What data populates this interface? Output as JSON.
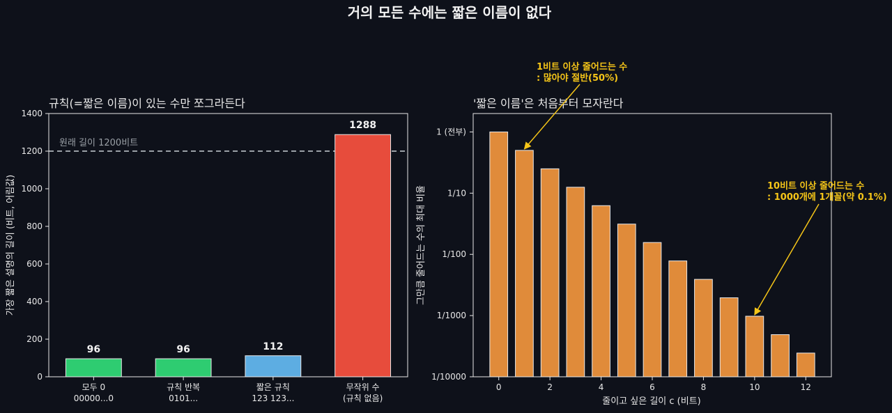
{
  "figure_title": "거의 모든 수에는 짧은 이름이 없다",
  "colors": {
    "background": "#0e111a",
    "axis": "#e8e8e8",
    "text": "#e8e8e8",
    "annotation": "#f5c518",
    "reference_line": "#9aa0a6",
    "green": "#2ecc71",
    "blue": "#5dade2",
    "red": "#e74c3c",
    "orange": "#e08b3a"
  },
  "chart_data": [
    {
      "type": "bar",
      "title": "규칙(=짧은 이름)이 있는 수만 쪼그라든다",
      "xlabel": "",
      "ylabel": "가장 짧은 설명의 길이 (비트, 어림값)",
      "ylim": [
        0,
        1400
      ],
      "yticks": [
        0,
        200,
        400,
        600,
        800,
        1000,
        1200,
        1400
      ],
      "categories": [
        {
          "line1": "모두 0",
          "line2": "00000...0"
        },
        {
          "line1": "규칙 반복",
          "line2": "0101..."
        },
        {
          "line1": "짧은 규칙",
          "line2": "123 123..."
        },
        {
          "line1": "무작위 수",
          "line2": "(규칙 없음)"
        }
      ],
      "values": [
        96,
        96,
        112,
        1288
      ],
      "value_labels": [
        "96",
        "96",
        "112",
        "1288"
      ],
      "bar_colors": [
        "#2ecc71",
        "#2ecc71",
        "#5dade2",
        "#e74c3c"
      ],
      "reference_line": {
        "value": 1200,
        "label": "원래 길이 1200비트"
      }
    },
    {
      "type": "bar",
      "title": "'짧은 이름'은 처음부터 모자란다",
      "xlabel": "줄이고 싶은 길이 c (비트)",
      "ylabel": "그만큼 줄어드는 수의 최대 비율",
      "yscale": "log2",
      "ylim": [
        0.0001,
        2
      ],
      "yticks": [
        {
          "value": 1,
          "label": "1 (전부)"
        },
        {
          "value": 0.1,
          "label": "1/10"
        },
        {
          "value": 0.01,
          "label": "1/100"
        },
        {
          "value": 0.001,
          "label": "1/1000"
        },
        {
          "value": 0.0001,
          "label": "1/10000"
        }
      ],
      "xlim": [
        -1,
        13
      ],
      "xticks": [
        "0",
        "2",
        "4",
        "6",
        "8",
        "10",
        "12"
      ],
      "x": [
        0,
        1,
        2,
        3,
        4,
        5,
        6,
        7,
        8,
        9,
        10,
        11,
        12
      ],
      "values": [
        1,
        0.5,
        0.25,
        0.125,
        0.0625,
        0.03125,
        0.015625,
        0.0078125,
        0.00390625,
        0.001953125,
        0.0009765625,
        0.00048828125,
        0.000244140625
      ],
      "bar_color": "#e08b3a",
      "annotations": [
        {
          "text_line1": "1비트 이상 줄어드는 수",
          "text_line2": ": 많아야 절반(50%)",
          "x": 1,
          "y": 0.5
        },
        {
          "text_line1": "10비트 이상 줄어드는 수",
          "text_line2": ": 1000개에 1개꼴(약 0.1%)",
          "x": 10,
          "y": 0.0009765625
        }
      ]
    }
  ]
}
